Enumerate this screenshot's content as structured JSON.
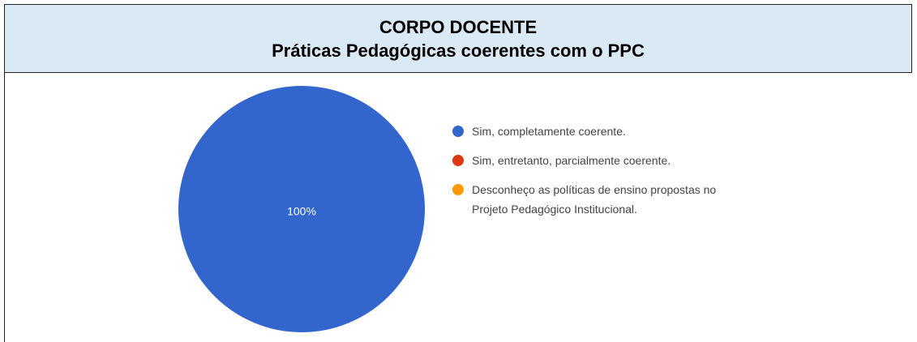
{
  "header": {
    "title": "CORPO DOCENTE",
    "subtitle": "Práticas Pedagógicas coerentes com o PPC"
  },
  "chart_data": {
    "type": "pie",
    "categories": [
      "Sim, completamente coerente.",
      "Sim, entretanto, parcialmente coerente.",
      "Desconheço as políticas de ensino propostas no Projeto Pedagógico Institucional."
    ],
    "values": [
      100,
      0,
      0
    ],
    "value_labels": [
      "100%",
      null,
      null
    ],
    "colors": [
      "#3366cc",
      "#dc3912",
      "#ff9900"
    ]
  }
}
